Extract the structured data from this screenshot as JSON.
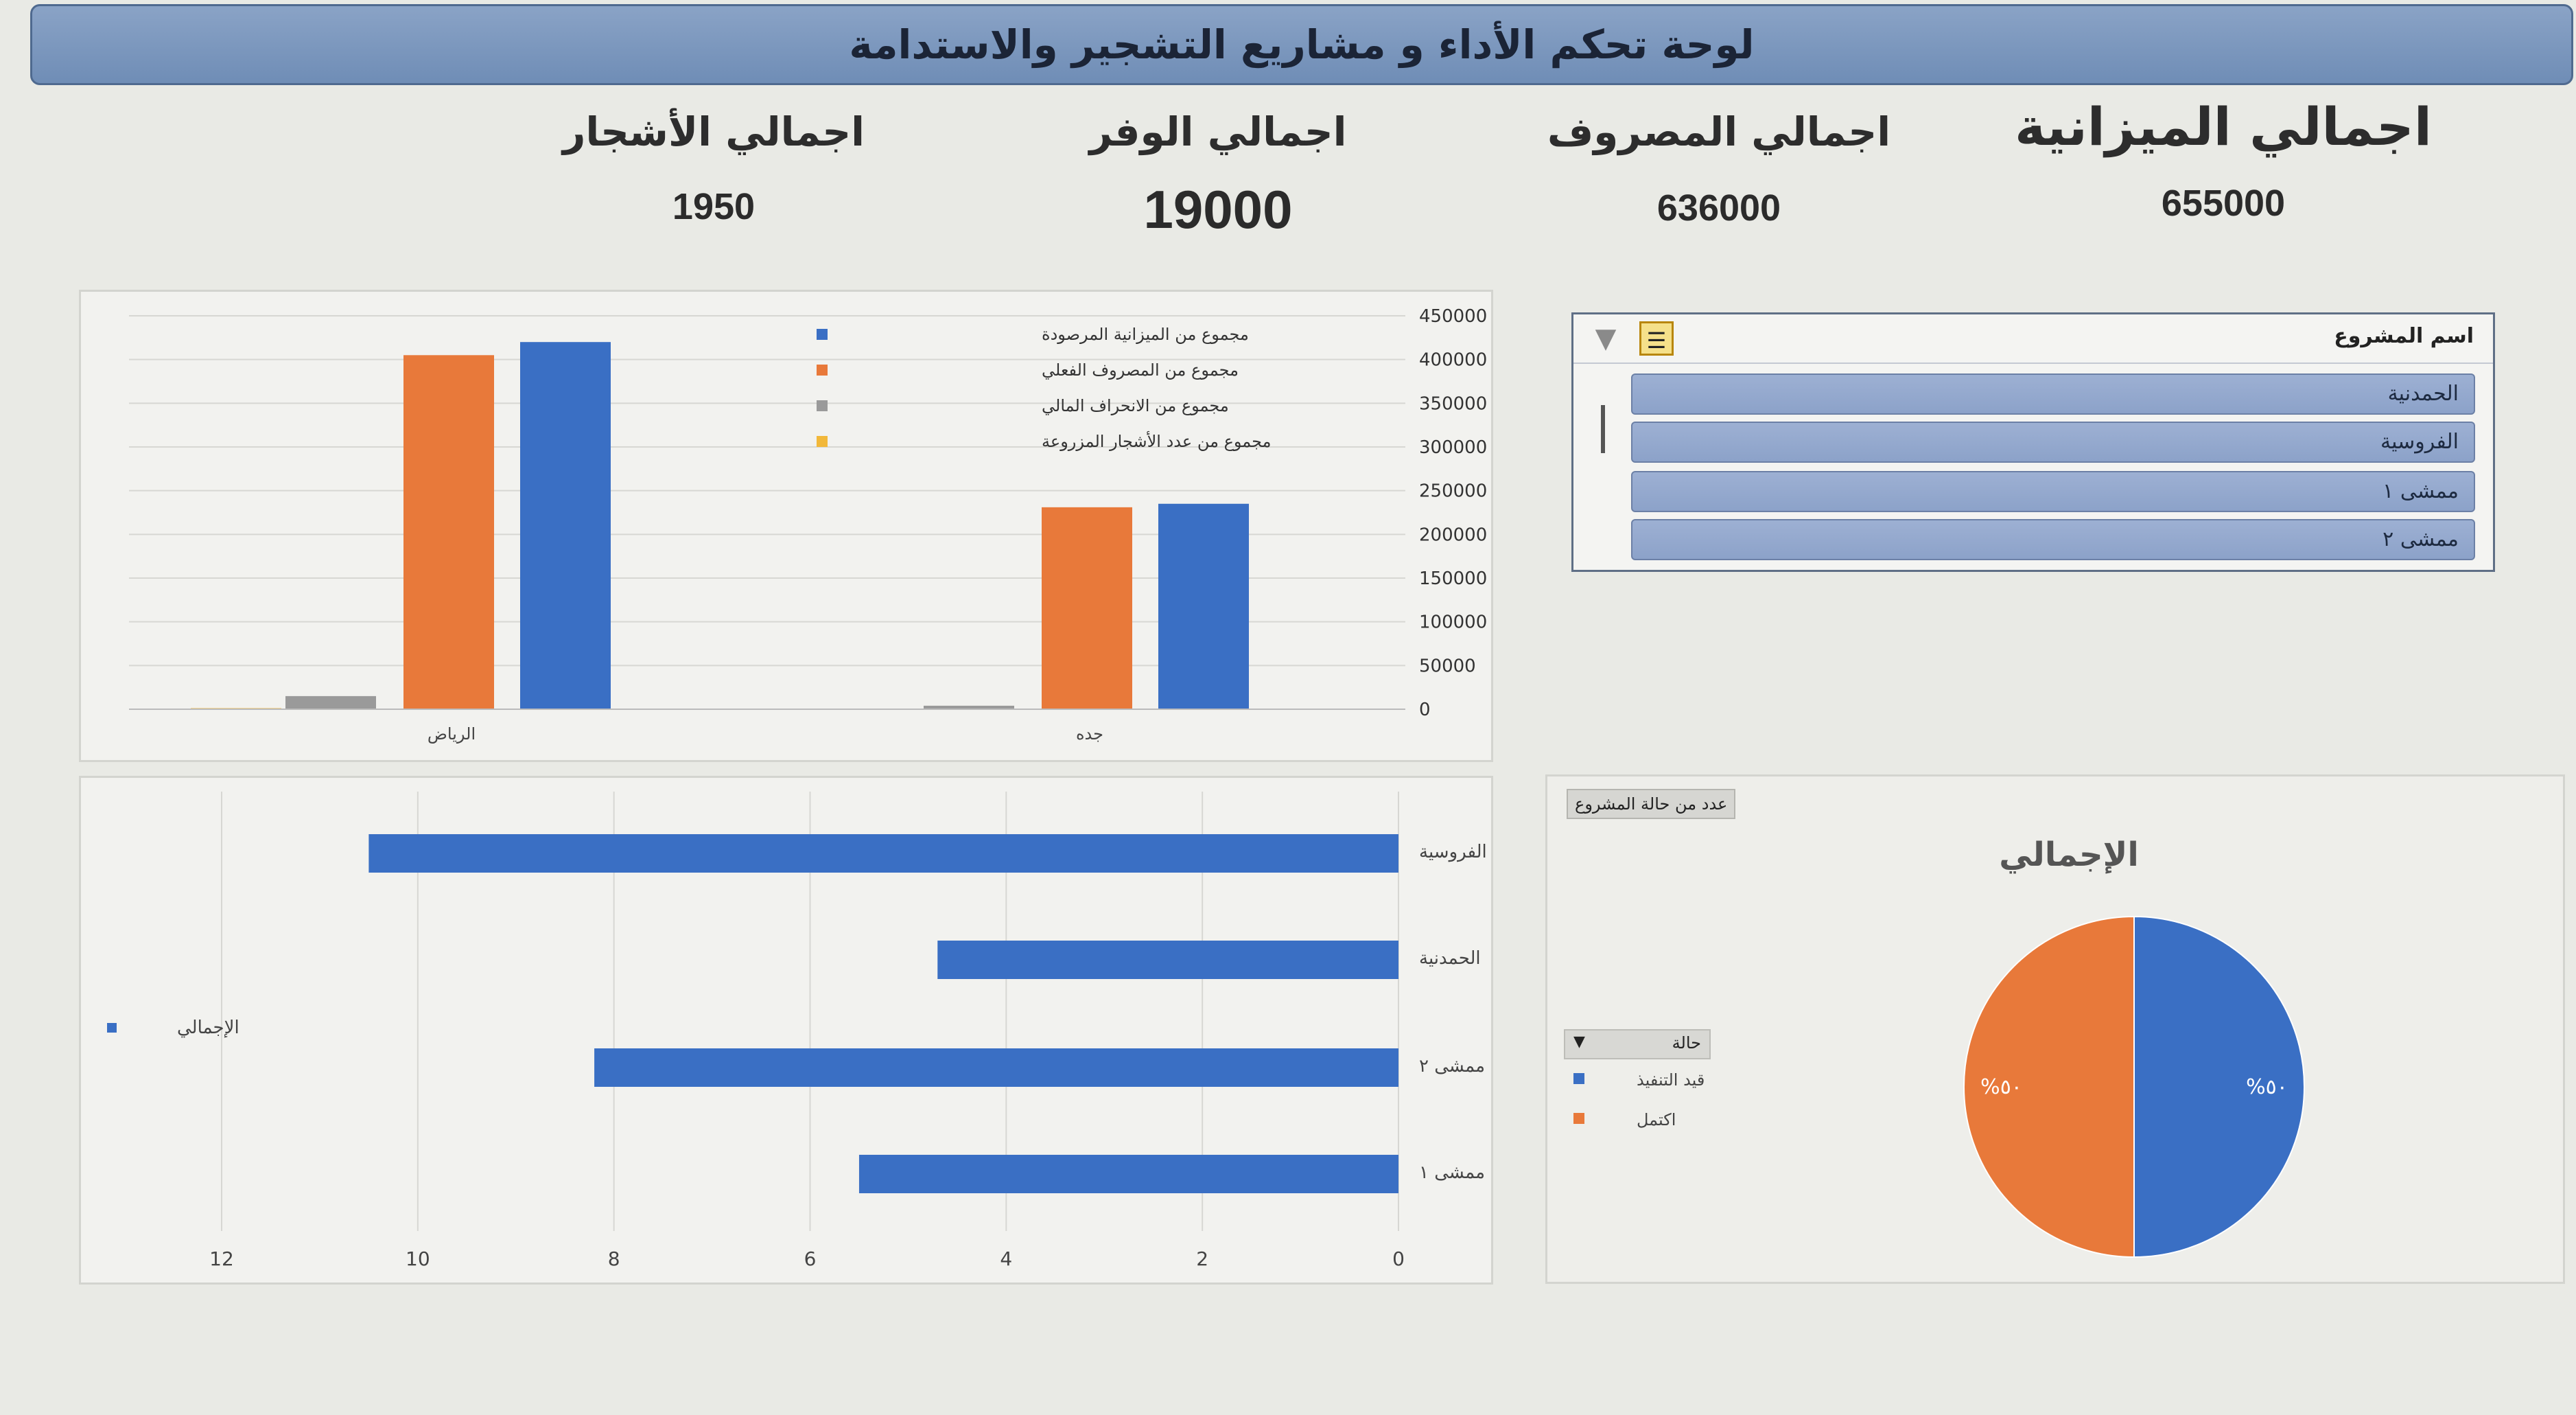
{
  "title": "لوحة تحكم الأداء و مشاريع التشجير والاستدامة",
  "kpis": [
    {
      "label": "اجمالي الميزانية",
      "value": "655000"
    },
    {
      "label": "اجمالي المصروف",
      "value": "636000"
    },
    {
      "label": "اجمالي الوفر",
      "value": "19000"
    },
    {
      "label": "اجمالي الأشجار",
      "value": "1950"
    }
  ],
  "slicer": {
    "title": "اسم المشروع",
    "items": [
      "الحمدنية",
      "الفروسية",
      "ممشى ١",
      "ممشى ٢"
    ],
    "multi_select_icon": "multi-select-icon",
    "clear_filter_icon": "clear-filter-icon"
  },
  "pie_panel": {
    "field_button": "عدد من حالة المشروع",
    "legend_header": "حالة",
    "legend_dropdown_icon": "dropdown-icon"
  },
  "colors": {
    "blue": "#3a6fc4",
    "orange": "#e8793a",
    "gray": "#9a9a9a",
    "yellow": "#f2b83a"
  },
  "chart_data": [
    {
      "type": "bar",
      "categories": [
        "الرياض",
        "جده"
      ],
      "ylim": [
        0,
        450000
      ],
      "yticks": [
        0,
        50000,
        100000,
        150000,
        200000,
        250000,
        300000,
        350000,
        400000,
        450000
      ],
      "series": [
        {
          "name": "مجموع من المصروف الفعلي",
          "color": "#e8793a",
          "values": [
            405000,
            231000
          ]
        },
        {
          "name": "مجموع من الميزانية المرصودة",
          "color": "#3a6fc4",
          "values": [
            420000,
            235000
          ]
        },
        {
          "name": "مجموع من الانحراف المالي",
          "color": "#9a9a9a",
          "values": [
            15000,
            4000
          ]
        },
        {
          "name": "مجموع من عدد الأشجار المزروعة",
          "color": "#f2b83a",
          "values": [
            1200,
            750
          ]
        }
      ],
      "legend_position": "top-center",
      "grid": true
    },
    {
      "type": "bar",
      "orientation": "horizontal",
      "categories": [
        "الفروسية",
        "الحمدنية",
        "ممشى ٢",
        "ممشى ١"
      ],
      "values": [
        10.5,
        4.7,
        8.2,
        5.5
      ],
      "xlim": [
        0,
        12
      ],
      "xticks": [
        0,
        2,
        4,
        6,
        8,
        10,
        12
      ],
      "series_name": "الإجمالي",
      "color": "#3a6fc4",
      "legend_position": "left",
      "grid": true
    },
    {
      "type": "pie",
      "title": "الإجمالي",
      "labels": [
        "قيد التنفيذ",
        "اكتمل"
      ],
      "values": [
        50,
        50
      ],
      "value_labels": [
        "%٥٠",
        "%٥٠"
      ],
      "colors": [
        "#3a6fc4",
        "#e8793a"
      ],
      "legend_position": "left"
    }
  ]
}
